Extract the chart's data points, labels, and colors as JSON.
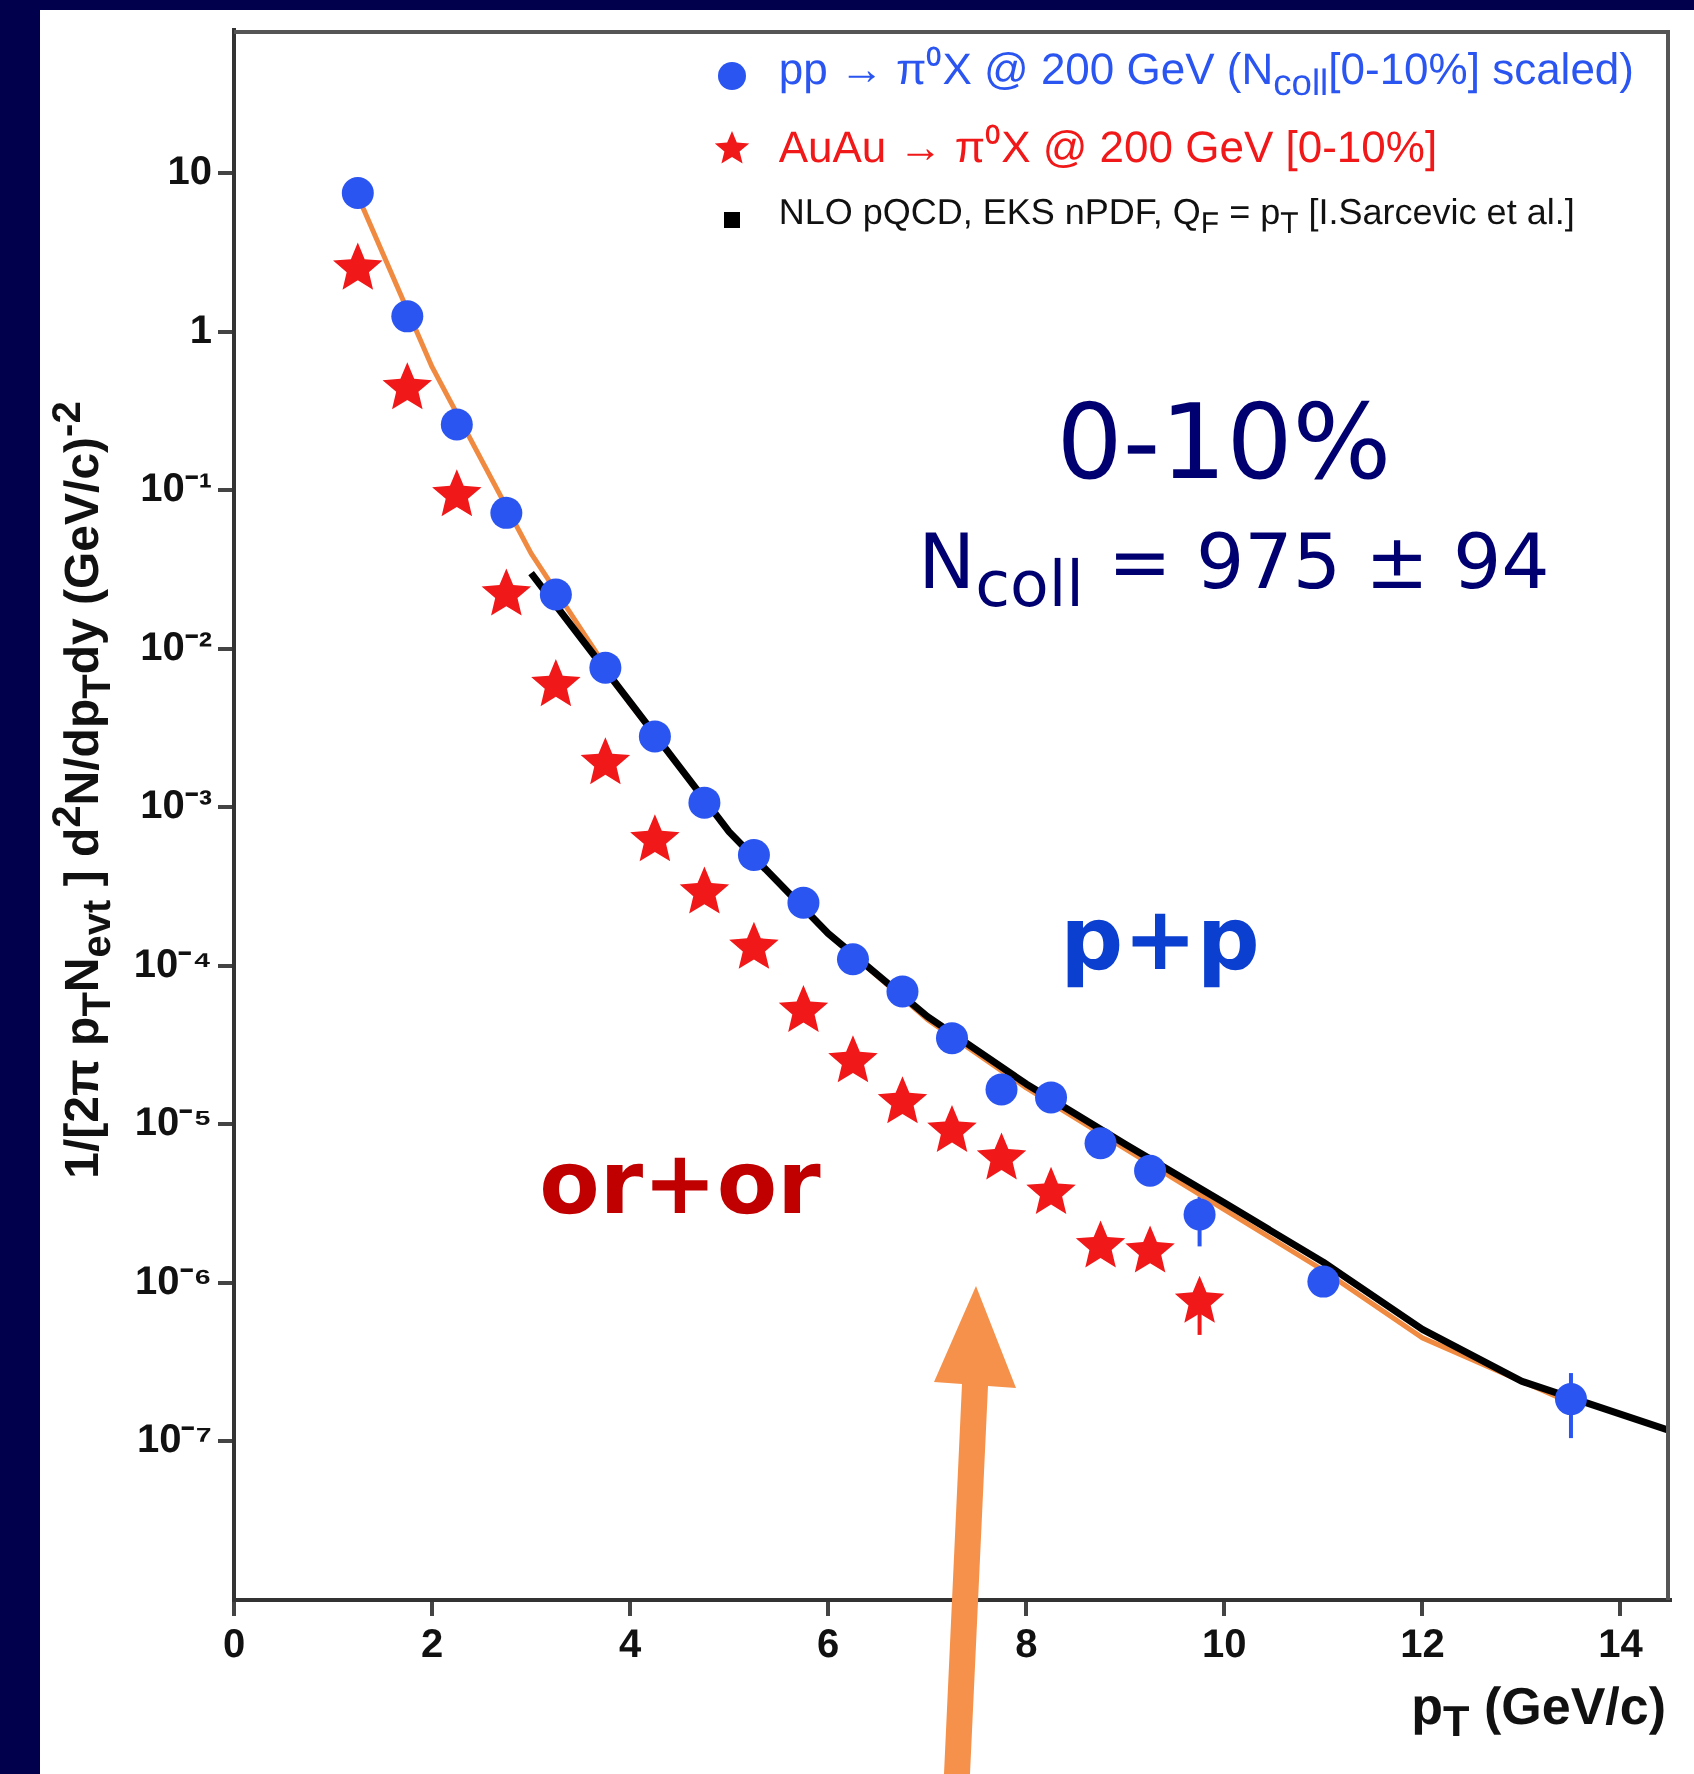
{
  "chart_data": {
    "type": "scatter",
    "xlabel": "p$_{T}$ (GeV/c)",
    "ylabel": "1/[2π p$_{T}$N$_{evt}$ ] d$^{2}$N/dp$_{T}$dy (GeV/c)$^{-2}$",
    "annotations": [
      "0-10%",
      "N$_{coll}$ = 975 ± 94",
      "p+p",
      "or+or"
    ],
    "xlim": [
      0,
      14.5
    ],
    "xticks": [
      0,
      2,
      4,
      6,
      8,
      10,
      12,
      14
    ],
    "ylim": [
      1e-08,
      80
    ],
    "yticks": [
      {
        "value": 1e-07,
        "label": "10⁻⁷"
      },
      {
        "value": 1e-06,
        "label": "10⁻⁶"
      },
      {
        "value": 1e-05,
        "label": "10⁻⁵"
      },
      {
        "value": 0.0001,
        "label": "10⁻⁴"
      },
      {
        "value": 0.001,
        "label": "10⁻³"
      },
      {
        "value": 0.01,
        "label": "10⁻²"
      },
      {
        "value": 0.1,
        "label": "10⁻¹"
      },
      1,
      10
    ],
    "log": "y",
    "grid": false,
    "legend": "top right",
    "series": [
      {
        "name": "pp → π⁰X @ 200 GeV (N$_{coll}$[0-10%] scaled)",
        "type": "scatter",
        "marker": "circle",
        "color": "#2b55f0",
        "x": [
          1.25,
          1.75,
          2.25,
          2.75,
          3.25,
          3.75,
          4.25,
          4.75,
          5.25,
          5.75,
          6.25,
          6.75,
          7.25,
          7.75,
          8.25,
          8.75,
          9.25,
          9.75,
          11.0,
          13.5
        ],
        "values": [
          7.5,
          1.25,
          0.26,
          0.072,
          0.022,
          0.0076,
          0.0028,
          0.00107,
          0.0005,
          0.00025,
          0.00011,
          6.9e-05,
          3.5e-05,
          1.66e-05,
          1.48e-05,
          7.6e-06,
          5.1e-06,
          2.7e-06,
          1.02e-06,
          1.85e-07
        ],
        "errors": [
          null,
          null,
          null,
          null,
          null,
          null,
          null,
          null,
          null,
          null,
          null,
          null,
          null,
          null,
          null,
          null,
          null,
          [
            1.7e-06,
            3.5e-06
          ],
          null,
          [
            1.05e-07,
            2.7e-07
          ]
        ]
      },
      {
        "name": "AuAu → π⁰X @ 200 GeV [0-10%]",
        "type": "scatter",
        "marker": "star",
        "color": "#f01818",
        "x": [
          1.25,
          1.75,
          2.25,
          2.75,
          3.25,
          3.75,
          4.25,
          4.75,
          5.25,
          5.75,
          6.25,
          6.75,
          7.25,
          7.75,
          8.25,
          8.75,
          9.25,
          9.75
        ],
        "values": [
          2.5,
          0.44,
          0.093,
          0.022,
          0.0059,
          0.0019,
          0.00062,
          0.00029,
          0.00013,
          5.2e-05,
          2.5e-05,
          1.38e-05,
          9.1e-06,
          6.1e-06,
          3.7e-06,
          1.7e-06,
          1.58e-06,
          7.6e-07
        ],
        "errors": [
          null,
          null,
          null,
          null,
          null,
          null,
          null,
          null,
          null,
          null,
          null,
          null,
          null,
          null,
          null,
          null,
          null,
          [
            4.7e-07,
            9.1e-07
          ]
        ]
      },
      {
        "name": "NLO pQCD, EKS nPDF, Q$_{F}$ = p$_{T}$ [I.Sarcevic et al.]",
        "type": "line",
        "marker": "none",
        "color": "#000000",
        "x": [
          3.0,
          4,
          5,
          6,
          7,
          8,
          9,
          10,
          11,
          12,
          13,
          14.5
        ],
        "values": [
          0.03,
          0.0046,
          0.0007,
          0.00016,
          4.8e-05,
          1.8e-05,
          7.5e-06,
          3.2e-06,
          1.35e-06,
          5.1e-07,
          2.4e-07,
          1.17e-07
        ]
      },
      {
        "type": "line",
        "marker": "none",
        "color": "#f08a40",
        "x": [
          1.3,
          2,
          3,
          4,
          5,
          6,
          7,
          8,
          9,
          10,
          11,
          12,
          13.5
        ],
        "values": [
          6.1,
          0.6,
          0.04,
          0.0045,
          0.0007,
          0.00016,
          4.6e-05,
          1.7e-05,
          7e-06,
          2.9e-06,
          1.2e-06,
          4.5e-07,
          1.75e-07
        ]
      }
    ]
  }
}
